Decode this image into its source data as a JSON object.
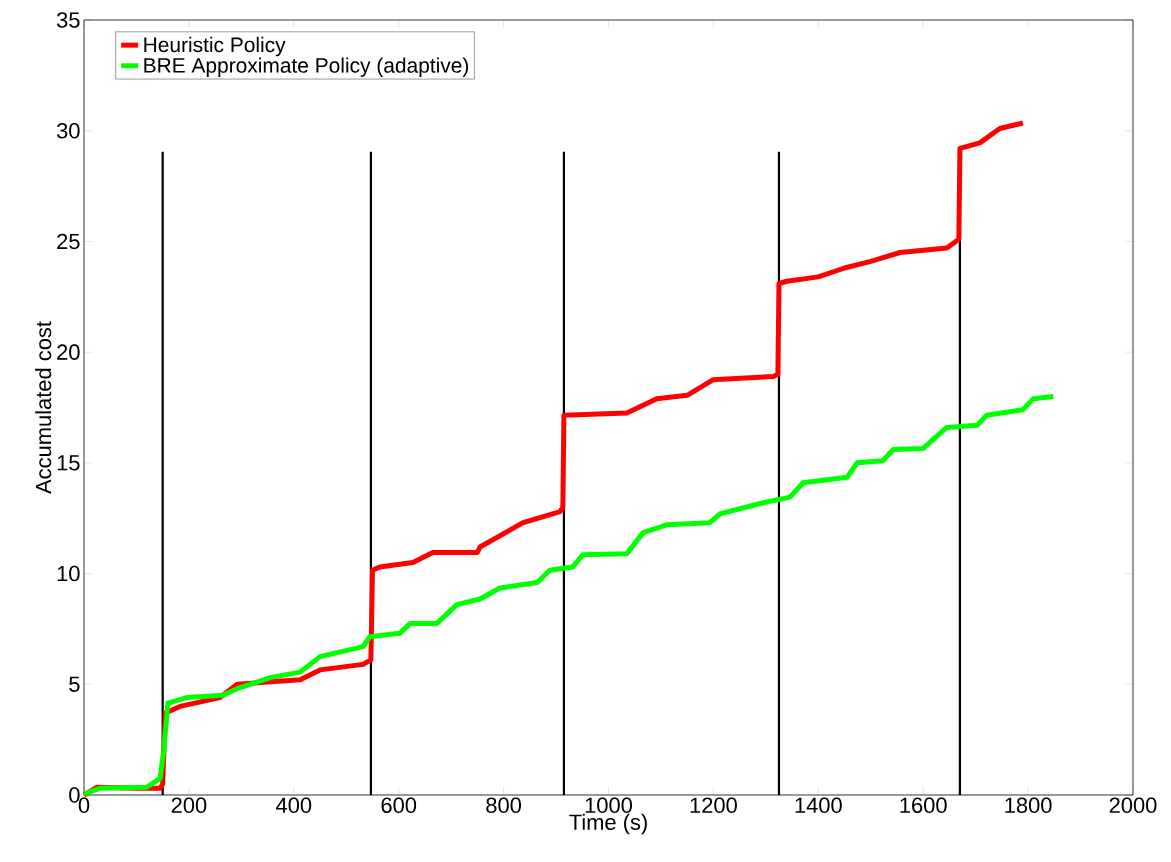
{
  "chart_data": {
    "type": "line",
    "xlabel": "Time (s)",
    "ylabel": "Accumulated cost",
    "xlim": [
      0,
      2000
    ],
    "ylim": [
      0,
      35
    ],
    "xticks": [
      0,
      200,
      400,
      600,
      800,
      1000,
      1200,
      1400,
      1600,
      1800,
      2000
    ],
    "yticks": [
      0,
      5,
      10,
      15,
      20,
      25,
      30,
      35
    ],
    "grid": false,
    "legend": "top left",
    "marker": "none",
    "line_style": "solid",
    "series": [
      {
        "name": "Heuristic Policy",
        "color": "#ff0000",
        "x": [
          0,
          25,
          100,
          145,
          150,
          155,
          183,
          259,
          292,
          349,
          412,
          450,
          532,
          547,
          550,
          564,
          627,
          665,
          750,
          755,
          837,
          908,
          913,
          915,
          1035,
          1092,
          1150,
          1199,
          1314,
          1323,
          1325,
          1340,
          1400,
          1450,
          1500,
          1556,
          1645,
          1668,
          1670,
          1708,
          1746,
          1790
        ],
        "values": [
          0,
          0.35,
          0.3,
          0.3,
          0.5,
          3.7,
          4.0,
          4.4,
          5.0,
          5.1,
          5.2,
          5.65,
          5.9,
          6.1,
          10.15,
          10.3,
          10.5,
          10.95,
          10.95,
          11.2,
          12.3,
          12.8,
          13.0,
          17.15,
          17.25,
          17.9,
          18.05,
          18.75,
          18.9,
          19.0,
          23.1,
          23.2,
          23.4,
          23.8,
          24.1,
          24.5,
          24.7,
          25.1,
          29.2,
          29.45,
          30.1,
          30.35
        ]
      },
      {
        "name": "BRE Approximate Policy (adaptive)",
        "color": "#00ff00",
        "x": [
          0,
          30,
          120,
          145,
          152,
          160,
          196,
          265,
          292,
          355,
          412,
          450,
          532,
          545,
          602,
          622,
          673,
          711,
          755,
          793,
          864,
          888,
          932,
          951,
          1035,
          1066,
          1111,
          1193,
          1213,
          1295,
          1346,
          1371,
          1455,
          1474,
          1523,
          1543,
          1600,
          1645,
          1703,
          1721,
          1790,
          1810,
          1848
        ],
        "values": [
          0.05,
          0.3,
          0.35,
          0.75,
          2.0,
          4.15,
          4.4,
          4.5,
          4.8,
          5.3,
          5.55,
          6.25,
          6.7,
          7.15,
          7.3,
          7.75,
          7.75,
          8.6,
          8.85,
          9.35,
          9.6,
          10.15,
          10.3,
          10.85,
          10.9,
          11.85,
          12.2,
          12.3,
          12.7,
          13.2,
          13.45,
          14.1,
          14.35,
          15.0,
          15.1,
          15.6,
          15.65,
          16.6,
          16.7,
          17.15,
          17.4,
          17.9,
          18.0
        ]
      }
    ],
    "ref_lines": [
      {
        "axis": "x",
        "value": 150,
        "color": "#000000"
      },
      {
        "axis": "x",
        "value": 547,
        "color": "#000000"
      },
      {
        "axis": "x",
        "value": 915,
        "color": "#000000"
      },
      {
        "axis": "x",
        "value": 1325,
        "color": "#000000"
      },
      {
        "axis": "x",
        "value": 1670,
        "color": "#000000"
      }
    ]
  }
}
